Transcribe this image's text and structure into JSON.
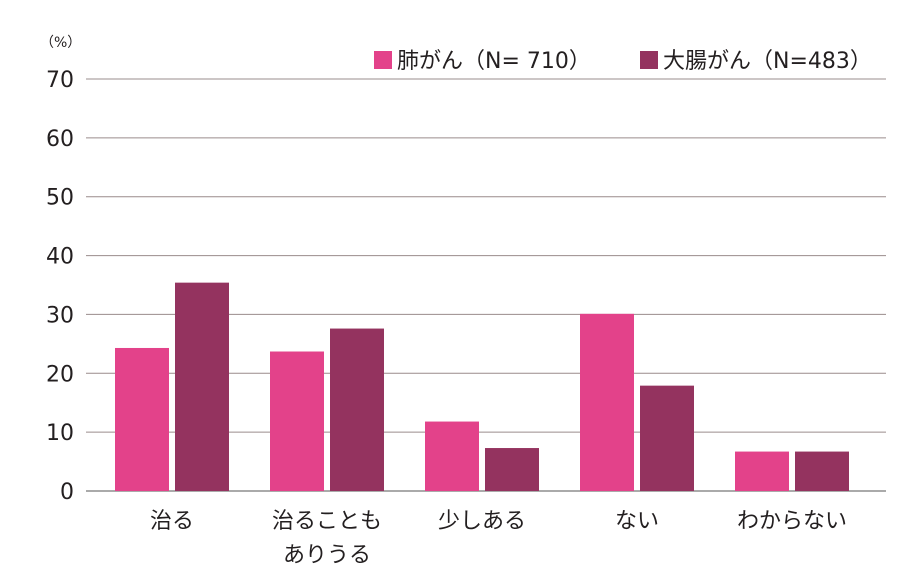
{
  "chart_data": {
    "type": "bar",
    "unit_label": "（%）",
    "categories": [
      [
        "治る"
      ],
      [
        "治ることも",
        "ありうる"
      ],
      [
        "少しある"
      ],
      [
        "ない"
      ],
      [
        "わからない"
      ]
    ],
    "series": [
      {
        "name": "肺がん（N= 710）",
        "color": "#e3428a",
        "values": [
          24.3,
          23.7,
          11.8,
          30.1,
          6.7
        ]
      },
      {
        "name": "大腸がん（N=483）",
        "color": "#94335f",
        "values": [
          35.4,
          27.6,
          7.3,
          17.9,
          6.7
        ]
      }
    ],
    "ylim": [
      0,
      70
    ],
    "yticks": [
      0,
      10,
      20,
      30,
      40,
      50,
      60,
      70
    ],
    "grid": true,
    "legend_position": "top-right"
  }
}
